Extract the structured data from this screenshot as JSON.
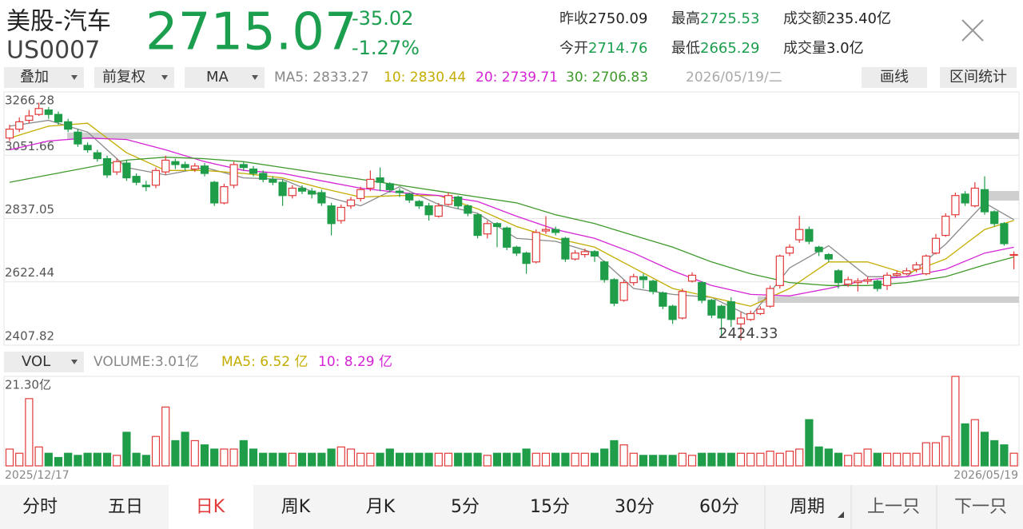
{
  "header": {
    "name": "美股-汽车",
    "code": "US0007",
    "price": "2715.07",
    "change": "-35.02",
    "change_pct": "-1.27%",
    "stats": [
      [
        "昨收",
        "2750.09"
      ],
      [
        "最高",
        "2725.53"
      ],
      [
        "成交额",
        "235.40亿"
      ],
      [
        "今开",
        "2714.76"
      ],
      [
        "最低",
        "2665.29"
      ],
      [
        "成交量",
        "3.0亿"
      ]
    ]
  },
  "toolbar": {
    "overlay": "叠加",
    "adjust": "前复权",
    "indicator": "MA",
    "ma_legend": [
      "MA5: 2833.27",
      "10: 2830.44",
      "20: 2739.71",
      "30: 2706.83"
    ],
    "date": "2026/05/19/二",
    "draw": "画线",
    "range_stats": "区间统计"
  },
  "vol_bar": {
    "indicator": "VOL",
    "legend": [
      "VOLUME:3.01亿",
      "MA5: 6.52 亿",
      "10: 8.29 亿"
    ]
  },
  "tabs": [
    "分时",
    "五日",
    "日K",
    "周K",
    "月K",
    "5分",
    "15分",
    "30分",
    "60分",
    "周期",
    "上一只",
    "下一只"
  ],
  "selected_tab": 2,
  "chart_data": {
    "type": "candlestick",
    "up_color": "#e23a3a",
    "down_color": "#1f9d49",
    "x_labels": [
      "2025/12/17",
      "2026/05/19"
    ],
    "ylim": [
      2407.82,
      3266.28
    ],
    "yticks": [
      2407.82,
      2622.44,
      2837.05,
      3051.66,
      3266.28
    ],
    "open": [
      3110,
      3140,
      3170,
      3190,
      3205,
      3190,
      3165,
      3130,
      3085,
      3060,
      3040,
      2995,
      3025,
      2980,
      2950,
      2950,
      2995,
      3030,
      3020,
      3005,
      3015,
      2960,
      2890,
      2950,
      3020,
      3005,
      2990,
      2970,
      2960,
      2915,
      2940,
      2930,
      2925,
      2880,
      2830,
      2880,
      2905,
      2940,
      2975,
      2955,
      2930,
      2920,
      2895,
      2880,
      2845,
      2885,
      2910,
      2880,
      2850,
      2785,
      2820,
      2805,
      2740,
      2720,
      2690,
      2795,
      2800,
      2770,
      2700,
      2715,
      2725,
      2690,
      2630,
      2560,
      2620,
      2640,
      2625,
      2585,
      2540,
      2500,
      2625,
      2620,
      2560,
      2540,
      2555,
      2480,
      2495,
      2515,
      2540,
      2610,
      2720,
      2765,
      2800,
      2740,
      2715,
      2660,
      2615,
      2620,
      2625,
      2625,
      2610,
      2645,
      2650,
      2665,
      2650,
      2720,
      2780,
      2850,
      2920,
      2880,
      2935,
      2860,
      2820,
      2714.76
    ],
    "high": [
      3155,
      3180,
      3205,
      3230,
      3215,
      3200,
      3175,
      3140,
      3095,
      3070,
      3050,
      3040,
      3035,
      2990,
      2965,
      3010,
      3050,
      3040,
      3030,
      3025,
      3025,
      2965,
      2955,
      3030,
      3030,
      3015,
      3000,
      2980,
      2970,
      2950,
      2950,
      2940,
      2935,
      2890,
      2885,
      2910,
      2945,
      3000,
      3010,
      2960,
      2940,
      2925,
      2900,
      2890,
      2890,
      2925,
      2915,
      2885,
      2855,
      2830,
      2825,
      2810,
      2745,
      2725,
      2800,
      2845,
      2810,
      2775,
      2730,
      2735,
      2730,
      2695,
      2635,
      2630,
      2650,
      2650,
      2630,
      2590,
      2545,
      2600,
      2655,
      2625,
      2565,
      2545,
      2570,
      2520,
      2525,
      2540,
      2610,
      2715,
      2750,
      2846,
      2810,
      2745,
      2720,
      2665,
      2640,
      2635,
      2640,
      2630,
      2655,
      2660,
      2670,
      2690,
      2715,
      2785,
      2855,
      2925,
      2930,
      2960,
      2980,
      2865,
      2825,
      2725.53
    ],
    "low": [
      3100,
      3130,
      3160,
      3185,
      3175,
      3155,
      3130,
      3080,
      3060,
      3030,
      2975,
      2985,
      2965,
      2950,
      2930,
      2940,
      2985,
      3005,
      3000,
      2995,
      2980,
      2880,
      2885,
      2940,
      3000,
      2980,
      2960,
      2950,
      2880,
      2905,
      2920,
      2905,
      2880,
      2780,
      2820,
      2870,
      2895,
      2930,
      2930,
      2925,
      2910,
      2890,
      2870,
      2830,
      2840,
      2880,
      2870,
      2845,
      2770,
      2770,
      2740,
      2730,
      2710,
      2650,
      2685,
      2785,
      2780,
      2690,
      2695,
      2705,
      2690,
      2620,
      2540,
      2555,
      2610,
      2600,
      2580,
      2530,
      2480,
      2495,
      2620,
      2550,
      2500,
      2440,
      2470,
      2424.33,
      2490,
      2510,
      2535,
      2600,
      2710,
      2755,
      2750,
      2710,
      2690,
      2600,
      2605,
      2590,
      2615,
      2590,
      2595,
      2640,
      2645,
      2655,
      2645,
      2715,
      2775,
      2840,
      2880,
      2875,
      2850,
      2810,
      2745,
      2665.29
    ],
    "close": [
      3140,
      3165,
      3185,
      3210,
      3190,
      3165,
      3140,
      3090,
      3070,
      3040,
      2985,
      3030,
      2975,
      2960,
      2945,
      3000,
      3035,
      3020,
      3010,
      3015,
      2990,
      2890,
      2945,
      3020,
      3010,
      2990,
      2970,
      2960,
      2915,
      2940,
      2930,
      2920,
      2890,
      2820,
      2875,
      2900,
      2935,
      2970,
      2960,
      2935,
      2925,
      2900,
      2880,
      2850,
      2880,
      2915,
      2880,
      2855,
      2780,
      2820,
      2810,
      2740,
      2720,
      2685,
      2790,
      2800,
      2790,
      2700,
      2720,
      2725,
      2710,
      2630,
      2550,
      2620,
      2640,
      2630,
      2590,
      2540,
      2495,
      2590,
      2645,
      2560,
      2510,
      2500,
      2495,
      2500,
      2515,
      2530,
      2600,
      2710,
      2740,
      2800,
      2760,
      2725,
      2700,
      2620,
      2630,
      2625,
      2630,
      2600,
      2645,
      2650,
      2660,
      2680,
      2710,
      2770,
      2845,
      2915,
      2890,
      2940,
      2860,
      2820,
      2752,
      2715.07
    ],
    "ma_x": [
      0,
      4,
      8,
      12,
      16,
      20,
      24,
      28,
      32,
      36,
      40,
      44,
      48,
      52,
      56,
      60,
      64,
      68,
      72,
      76,
      80,
      84,
      88,
      92,
      96,
      100,
      103
    ],
    "ma_series": [
      {
        "color": "#8a8a8a",
        "values": [
          3150,
          3170,
          3130,
          3010,
          2985,
          3010,
          2975,
          2970,
          2915,
          2880,
          2945,
          2885,
          2855,
          2770,
          2760,
          2720,
          2600,
          2580,
          2570,
          2505,
          2670,
          2745,
          2640,
          2640,
          2750,
          2890,
          2833.27
        ]
      },
      {
        "color": "#c4ad00",
        "values": [
          3110,
          3150,
          3160,
          3060,
          3000,
          3000,
          2990,
          2975,
          2940,
          2910,
          2915,
          2915,
          2870,
          2810,
          2770,
          2740,
          2670,
          2600,
          2570,
          2540,
          2600,
          2690,
          2690,
          2650,
          2700,
          2800,
          2830.44
        ]
      },
      {
        "color": "#d524d5",
        "values": [
          3070,
          3100,
          3110,
          3105,
          3070,
          3030,
          3000,
          2990,
          2965,
          2940,
          2925,
          2915,
          2895,
          2845,
          2800,
          2770,
          2720,
          2660,
          2610,
          2580,
          2575,
          2600,
          2630,
          2640,
          2665,
          2720,
          2739.71
        ]
      },
      {
        "color": "#3f9a2c",
        "values": [
          2960,
          2985,
          3010,
          3035,
          3045,
          3040,
          3030,
          3010,
          2990,
          2970,
          2950,
          2930,
          2910,
          2890,
          2850,
          2820,
          2780,
          2740,
          2690,
          2650,
          2620,
          2610,
          2610,
          2620,
          2640,
          2680,
          2706.83
        ]
      }
    ],
    "volume": {
      "ylim": [
        0,
        21.3
      ],
      "yticks": [
        {
          "value": 21.3,
          "label": "21.30亿"
        }
      ],
      "values": [
        4,
        3,
        16,
        4.5,
        3,
        2,
        3,
        2.5,
        3,
        3,
        3,
        2.5,
        8,
        3,
        2.5,
        7,
        14,
        6,
        8,
        6,
        5,
        4,
        4,
        4,
        6,
        4,
        3,
        3,
        3,
        3,
        3,
        3,
        3,
        4,
        4.5,
        4,
        3,
        3,
        3,
        4,
        3,
        3,
        3,
        3,
        3,
        3,
        3,
        3,
        3,
        2.5,
        3,
        3,
        3,
        4,
        3,
        3,
        3,
        3,
        3,
        3,
        3,
        4,
        6,
        5,
        3,
        2.5,
        2.5,
        2.5,
        2.5,
        3,
        2.5,
        3,
        3,
        3,
        3,
        3,
        3,
        3,
        3.5,
        3,
        3.5,
        4,
        11,
        4.5,
        4,
        3,
        2.5,
        3,
        4,
        3,
        3,
        3,
        3,
        3,
        5.5,
        5.5,
        7,
        21.3,
        10,
        11,
        8,
        6,
        5,
        3.01
      ]
    }
  }
}
